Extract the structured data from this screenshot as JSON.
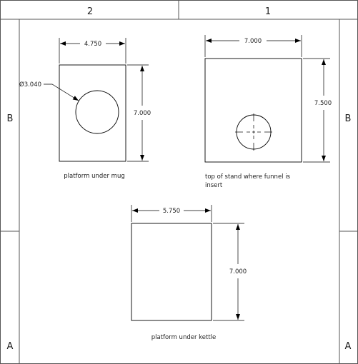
{
  "zones": {
    "top": [
      "2",
      "1"
    ],
    "left": [
      "B",
      "A"
    ],
    "right": [
      "B",
      "A"
    ]
  },
  "parts": [
    {
      "caption": "platform under mug",
      "width_dim": "4.750",
      "height_dim": "7.000",
      "hole_dim": "Ø3.040"
    },
    {
      "caption_lines": [
        "top of stand where funnel is",
        "insert"
      ],
      "width_dim": "7.000",
      "height_dim": "7.500"
    },
    {
      "caption": "platform under kettle",
      "width_dim": "5.750",
      "height_dim": "7.000"
    }
  ]
}
